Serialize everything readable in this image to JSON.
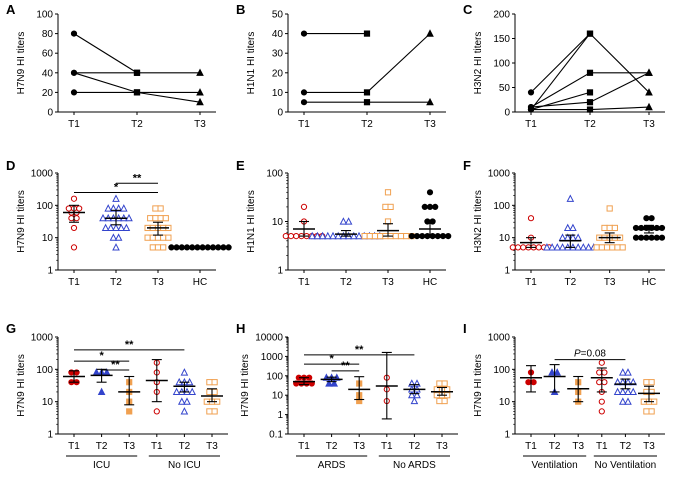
{
  "colors": {
    "t1": "#cc0000",
    "t2": "#3344cc",
    "t3": "#f0a050",
    "hc": "#000000",
    "axis": "#000000"
  },
  "chart_data": [
    {
      "id": "A",
      "panel_label": "A",
      "type": "line",
      "ylabel": "H7N9 HI titers",
      "ylim": [
        0,
        100
      ],
      "yticks": [
        0,
        20,
        40,
        60,
        80,
        100
      ],
      "x": [
        "T1",
        "T2",
        "T3"
      ],
      "series": [
        {
          "marker": "circle",
          "values": [
            80,
            40,
            null
          ]
        },
        {
          "marker": "circle",
          "values": [
            40,
            20,
            10
          ]
        },
        {
          "marker": "circle",
          "values": [
            20,
            20,
            20
          ]
        },
        {
          "marker": "square",
          "values": [
            40,
            40,
            40
          ]
        }
      ]
    },
    {
      "id": "B",
      "panel_label": "B",
      "type": "line",
      "ylabel": "H1N1 HI titers",
      "ylim": [
        0,
        50
      ],
      "yticks": [
        0,
        10,
        20,
        30,
        40,
        50
      ],
      "x": [
        "T1",
        "T2",
        "T3"
      ],
      "series": [
        {
          "marker": "circle",
          "values": [
            40,
            40,
            null
          ]
        },
        {
          "marker": "circle",
          "values": [
            10,
            10,
            40
          ]
        },
        {
          "marker": "circle",
          "values": [
            5,
            5,
            5
          ]
        }
      ]
    },
    {
      "id": "C",
      "panel_label": "C",
      "type": "line",
      "ylabel": "H3N2 HI titers",
      "ylim": [
        0,
        200
      ],
      "yticks": [
        0,
        50,
        100,
        150,
        200
      ],
      "x": [
        "T1",
        "T2",
        "T3"
      ],
      "series": [
        {
          "marker": "circle",
          "values": [
            40,
            160,
            40
          ]
        },
        {
          "marker": "circle",
          "values": [
            10,
            80,
            80
          ]
        },
        {
          "marker": "circle",
          "values": [
            5,
            40,
            null
          ]
        },
        {
          "marker": "circle",
          "values": [
            10,
            20,
            80
          ]
        },
        {
          "marker": "circle",
          "values": [
            5,
            5,
            10
          ]
        },
        {
          "marker": "circle",
          "values": [
            5,
            160,
            null
          ]
        }
      ]
    },
    {
      "id": "D",
      "panel_label": "D",
      "type": "scatter",
      "ylabel": "H7N9 HI titers",
      "yscale": "log",
      "ylim": [
        1,
        1000
      ],
      "yticks": [
        1,
        10,
        100,
        1000
      ],
      "categories": [
        "T1",
        "T2",
        "T3",
        "HC"
      ],
      "groups": [
        {
          "label": "T1",
          "color": "t1",
          "marker": "circle",
          "mean": 60,
          "ci": [
            30,
            100
          ],
          "points": [
            160,
            80,
            80,
            80,
            60,
            60,
            40,
            40,
            20,
            5
          ]
        },
        {
          "label": "T2",
          "color": "t2",
          "marker": "triangle",
          "mean": 40,
          "ci": [
            25,
            70
          ],
          "points": [
            160,
            80,
            80,
            80,
            80,
            40,
            40,
            40,
            40,
            40,
            40,
            20,
            20,
            20,
            20,
            20,
            10,
            10,
            5
          ]
        },
        {
          "label": "T3",
          "color": "t3",
          "marker": "square",
          "mean": 20,
          "ci": [
            12,
            30
          ],
          "points": [
            80,
            80,
            40,
            40,
            40,
            40,
            20,
            20,
            20,
            20,
            20,
            10,
            10,
            10,
            10,
            10,
            5,
            5,
            5
          ]
        },
        {
          "label": "HC",
          "color": "hc",
          "marker": "circle-filled",
          "mean": 5,
          "ci": [
            5,
            5
          ],
          "points": [
            5,
            5,
            5,
            5,
            5,
            5,
            5,
            5,
            5,
            5,
            5,
            5
          ]
        }
      ],
      "significance": [
        {
          "from": 0,
          "to": 2,
          "label": "*",
          "y": 250
        },
        {
          "from": 1,
          "to": 2,
          "label": "**",
          "y": 480
        }
      ]
    },
    {
      "id": "E",
      "panel_label": "E",
      "type": "scatter",
      "ylabel": "H1N1 HI titers",
      "yscale": "log",
      "ylim": [
        1,
        100
      ],
      "yticks": [
        1,
        10,
        100
      ],
      "categories": [
        "T1",
        "T2",
        "T3",
        "HC"
      ],
      "groups": [
        {
          "label": "T1",
          "color": "t1",
          "marker": "circle",
          "mean": 7,
          "ci": [
            5,
            10
          ],
          "points": [
            20,
            10,
            5,
            5,
            5,
            5,
            5,
            5,
            5,
            5
          ]
        },
        {
          "label": "T2",
          "color": "t2",
          "marker": "triangle",
          "mean": 5.5,
          "ci": [
            5,
            6.5
          ],
          "points": [
            10,
            10,
            5,
            5,
            5,
            5,
            5,
            5,
            5,
            5,
            5,
            5,
            5,
            5,
            5,
            5
          ]
        },
        {
          "label": "T3",
          "color": "t3",
          "marker": "square",
          "mean": 6.5,
          "ci": [
            5,
            9
          ],
          "points": [
            40,
            20,
            20,
            10,
            5,
            5,
            5,
            5,
            5,
            5,
            5,
            5,
            5,
            5
          ]
        },
        {
          "label": "HC",
          "color": "hc",
          "marker": "circle-filled",
          "mean": 7,
          "ci": [
            5,
            10
          ],
          "points": [
            40,
            20,
            20,
            20,
            10,
            10,
            5,
            5,
            5,
            5,
            5,
            5,
            5,
            5
          ]
        }
      ]
    },
    {
      "id": "F",
      "panel_label": "F",
      "type": "scatter",
      "ylabel": "H3N2 HI titers",
      "yscale": "log",
      "ylim": [
        1,
        1000
      ],
      "yticks": [
        1,
        10,
        100,
        1000
      ],
      "categories": [
        "T1",
        "T2",
        "T3",
        "HC"
      ],
      "groups": [
        {
          "label": "T1",
          "color": "t1",
          "marker": "circle",
          "mean": 7,
          "ci": [
            5,
            10
          ],
          "points": [
            40,
            10,
            5,
            5,
            5,
            5,
            5,
            5,
            5,
            5
          ]
        },
        {
          "label": "T2",
          "color": "t2",
          "marker": "triangle",
          "mean": 8,
          "ci": [
            5,
            12
          ],
          "points": [
            160,
            20,
            20,
            10,
            10,
            10,
            10,
            5,
            5,
            5,
            5,
            5,
            5,
            5,
            5,
            5,
            5
          ]
        },
        {
          "label": "T3",
          "color": "t3",
          "marker": "square",
          "mean": 10,
          "ci": [
            7,
            14
          ],
          "points": [
            80,
            20,
            20,
            20,
            10,
            10,
            10,
            10,
            10,
            5,
            5,
            5,
            5,
            5,
            5
          ]
        },
        {
          "label": "HC",
          "color": "hc",
          "marker": "circle-filled",
          "mean": 18,
          "ci": [
            14,
            24
          ],
          "points": [
            40,
            40,
            20,
            20,
            20,
            20,
            20,
            20,
            10,
            10,
            10,
            10,
            10,
            10
          ]
        }
      ]
    },
    {
      "id": "G",
      "panel_label": "G",
      "type": "scatter",
      "ylabel": "H7N9 HI titers",
      "yscale": "log",
      "ylim": [
        1,
        1000
      ],
      "yticks": [
        1,
        10,
        100,
        1000
      ],
      "categories": [
        "T1",
        "T2",
        "T3",
        "T1",
        "T2",
        "T3"
      ],
      "brackets": [
        {
          "label": "ICU",
          "from": 0,
          "to": 2
        },
        {
          "label": "No ICU",
          "from": 3,
          "to": 5
        }
      ],
      "groups": [
        {
          "label": "T1",
          "color": "t1",
          "marker": "circle-filled",
          "mean": 60,
          "ci": [
            40,
            90
          ],
          "points": [
            80,
            80,
            40,
            40
          ]
        },
        {
          "label": "T2",
          "color": "t2",
          "marker": "triangle-filled",
          "mean": 65,
          "ci": [
            40,
            100
          ],
          "points": [
            80,
            80,
            80,
            20
          ]
        },
        {
          "label": "T3",
          "color": "t3",
          "marker": "square-filled",
          "mean": 20,
          "ci": [
            8,
            60
          ],
          "points": [
            40,
            20,
            10,
            5
          ]
        },
        {
          "label": "T1",
          "color": "t1",
          "marker": "circle",
          "mean": 45,
          "ci": [
            10,
            200
          ],
          "points": [
            160,
            80,
            40,
            20,
            5
          ]
        },
        {
          "label": "T2",
          "color": "t2",
          "marker": "triangle",
          "mean": 30,
          "ci": [
            20,
            40
          ],
          "points": [
            80,
            40,
            40,
            40,
            20,
            20,
            20,
            20,
            10,
            10,
            5
          ]
        },
        {
          "label": "T3",
          "color": "t3",
          "marker": "square",
          "mean": 15,
          "ci": [
            10,
            25
          ],
          "points": [
            40,
            40,
            20,
            20,
            10,
            10,
            10,
            5,
            5
          ]
        }
      ],
      "significance": [
        {
          "from": 0,
          "to": 2,
          "label": "*",
          "y": 180
        },
        {
          "from": 1,
          "to": 2,
          "label": "**",
          "y": 95
        },
        {
          "from": 0,
          "to": 4,
          "label": "**",
          "y": 400
        }
      ]
    },
    {
      "id": "H",
      "panel_label": "H",
      "type": "scatter",
      "ylabel": "H7N9 HI titers",
      "yscale": "log",
      "ylim": [
        0.1,
        10000
      ],
      "yticks": [
        0.1,
        1,
        10,
        100,
        1000,
        10000
      ],
      "categories": [
        "T1",
        "T2",
        "T3",
        "T1",
        "T2",
        "T3"
      ],
      "brackets": [
        {
          "label": "ARDS",
          "from": 0,
          "to": 2
        },
        {
          "label": "No ARDS",
          "from": 3,
          "to": 5
        }
      ],
      "groups": [
        {
          "label": "T1",
          "color": "t1",
          "marker": "circle-filled",
          "mean": 50,
          "ci": [
            35,
            80
          ],
          "points": [
            80,
            80,
            80,
            40,
            40,
            40,
            40
          ]
        },
        {
          "label": "T2",
          "color": "t2",
          "marker": "triangle-filled",
          "mean": 65,
          "ci": [
            50,
            85
          ],
          "points": [
            80,
            80,
            80,
            40,
            40
          ]
        },
        {
          "label": "T3",
          "color": "t3",
          "marker": "square-filled",
          "mean": 20,
          "ci": [
            6,
            90
          ],
          "points": [
            40,
            10,
            5
          ]
        },
        {
          "label": "T1",
          "color": "t1",
          "marker": "circle",
          "mean": 30,
          "ci": [
            0.6,
            1600
          ],
          "points": [
            80,
            20,
            5
          ]
        },
        {
          "label": "T2",
          "color": "t2",
          "marker": "triangle",
          "mean": 20,
          "ci": [
            12,
            35
          ],
          "points": [
            40,
            40,
            20,
            20,
            10,
            10,
            5
          ]
        },
        {
          "label": "T3",
          "color": "t3",
          "marker": "square",
          "mean": 15,
          "ci": [
            10,
            25
          ],
          "points": [
            40,
            40,
            20,
            20,
            20,
            10,
            10,
            10,
            5,
            5
          ]
        }
      ],
      "significance": [
        {
          "from": 0,
          "to": 2,
          "label": "*",
          "y": 400
        },
        {
          "from": 1,
          "to": 2,
          "label": "**",
          "y": 180
        },
        {
          "from": 0,
          "to": 4,
          "label": "**",
          "y": 1200
        }
      ]
    },
    {
      "id": "I",
      "panel_label": "I",
      "type": "scatter",
      "ylabel": "H7N9 HI titers",
      "yscale": "log",
      "ylim": [
        1,
        1000
      ],
      "yticks": [
        1,
        10,
        100,
        1000
      ],
      "categories": [
        "T1",
        "T2",
        "T3",
        "T1",
        "T2",
        "T3"
      ],
      "brackets": [
        {
          "label": "Ventilation",
          "from": 0,
          "to": 2
        },
        {
          "label": "No Ventilation",
          "from": 3,
          "to": 5
        }
      ],
      "groups": [
        {
          "label": "T1",
          "color": "t1",
          "marker": "circle-filled",
          "mean": 55,
          "ci": [
            20,
            130
          ],
          "points": [
            80,
            40,
            40
          ]
        },
        {
          "label": "T2",
          "color": "t2",
          "marker": "triangle-filled",
          "mean": 60,
          "ci": [
            20,
            140
          ],
          "points": [
            80,
            80,
            20
          ]
        },
        {
          "label": "T3",
          "color": "t3",
          "marker": "square-filled",
          "mean": 25,
          "ci": [
            10,
            60
          ],
          "points": [
            40,
            20,
            10
          ]
        },
        {
          "label": "T1",
          "color": "t1",
          "marker": "circle",
          "mean": 55,
          "ci": [
            20,
            110
          ],
          "points": [
            160,
            80,
            80,
            40,
            40,
            20,
            10,
            5
          ]
        },
        {
          "label": "T2",
          "color": "t2",
          "marker": "triangle",
          "mean": 35,
          "ci": [
            25,
            50
          ],
          "points": [
            80,
            80,
            40,
            40,
            40,
            40,
            20,
            20,
            20,
            20,
            10,
            10
          ]
        },
        {
          "label": "T3",
          "color": "t3",
          "marker": "square",
          "mean": 18,
          "ci": [
            10,
            30
          ],
          "points": [
            40,
            40,
            20,
            20,
            10,
            10,
            10,
            5,
            5
          ]
        }
      ],
      "significance": [
        {
          "from": 1,
          "to": 4,
          "label_italic": "P",
          "label_rest": "=0.08",
          "y": 200
        }
      ]
    }
  ]
}
